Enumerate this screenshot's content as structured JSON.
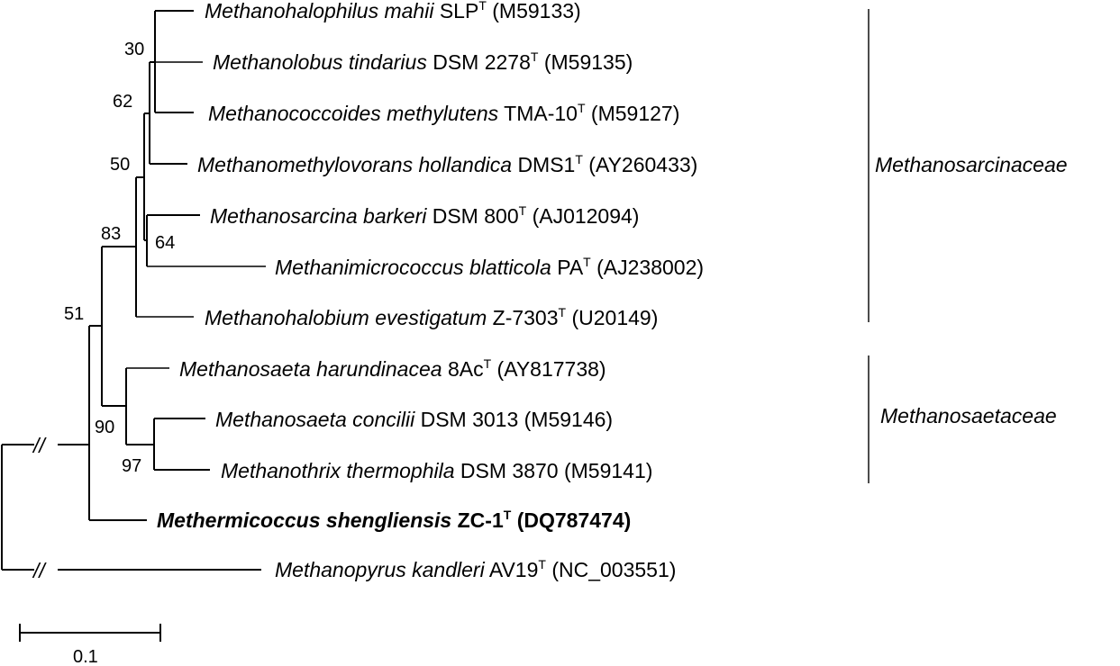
{
  "tree": {
    "taxa": [
      {
        "id": "mahii",
        "genus_species": "Methanohalophilus mahii",
        "strain": "SLP",
        "type_mark": "T",
        "accession": "(M59133)"
      },
      {
        "id": "tindarius",
        "genus_species": "Methanolobus tindarius",
        "strain": "DSM 2278",
        "type_mark": "T",
        "accession": "(M59135)"
      },
      {
        "id": "methylutens",
        "genus_species": "Methanococcoides methylutens",
        "strain": "TMA-10",
        "type_mark": "T",
        "accession": "(M59127)"
      },
      {
        "id": "hollandica",
        "genus_species": "Methanomethylovorans hollandica",
        "strain": "DMS1",
        "type_mark": "T",
        "accession": "(AY260433)"
      },
      {
        "id": "barkeri",
        "genus_species": "Methanosarcina barkeri",
        "strain": "DSM 800",
        "type_mark": "T",
        "accession": "(AJ012094)"
      },
      {
        "id": "blatticola",
        "genus_species": "Methanimicrococcus blatticola",
        "strain": "PA",
        "type_mark": "T",
        "accession": "(AJ238002)"
      },
      {
        "id": "evestigatum",
        "genus_species": "Methanohalobium evestigatum",
        "strain": "Z-7303",
        "type_mark": "T",
        "accession": "(U20149)"
      },
      {
        "id": "harundinacea",
        "genus_species": "Methanosaeta harundinacea",
        "strain": "8Ac",
        "type_mark": "T",
        "accession": "(AY817738)"
      },
      {
        "id": "concilii",
        "genus_species": "Methanosaeta concilii",
        "strain": "DSM 3013",
        "type_mark": "",
        "accession": "(M59146)"
      },
      {
        "id": "thermophila",
        "genus_species": "Methanothrix thermophila",
        "strain": "DSM 3870",
        "type_mark": "",
        "accession": "(M59141)"
      },
      {
        "id": "shengliensis",
        "genus_species": "Methermicoccus shengliensis",
        "strain": "ZC-1",
        "type_mark": "T",
        "accession": "(DQ787474)"
      },
      {
        "id": "kandleri",
        "genus_species": "Methanopyrus kandleri",
        "strain": "AV19",
        "type_mark": "T",
        "accession": "(NC_003551)"
      }
    ],
    "bootstrap": {
      "b30": "30",
      "b62": "62",
      "b50": "50",
      "b64": "64",
      "b83": "83",
      "b51": "51",
      "b90": "90",
      "b97": "97"
    },
    "families": {
      "sarcinaceae": "Methanosarcinaceae",
      "saetaceae": "Methanosaetaceae"
    },
    "scale_bar": "0.1",
    "break_mark": "//"
  }
}
